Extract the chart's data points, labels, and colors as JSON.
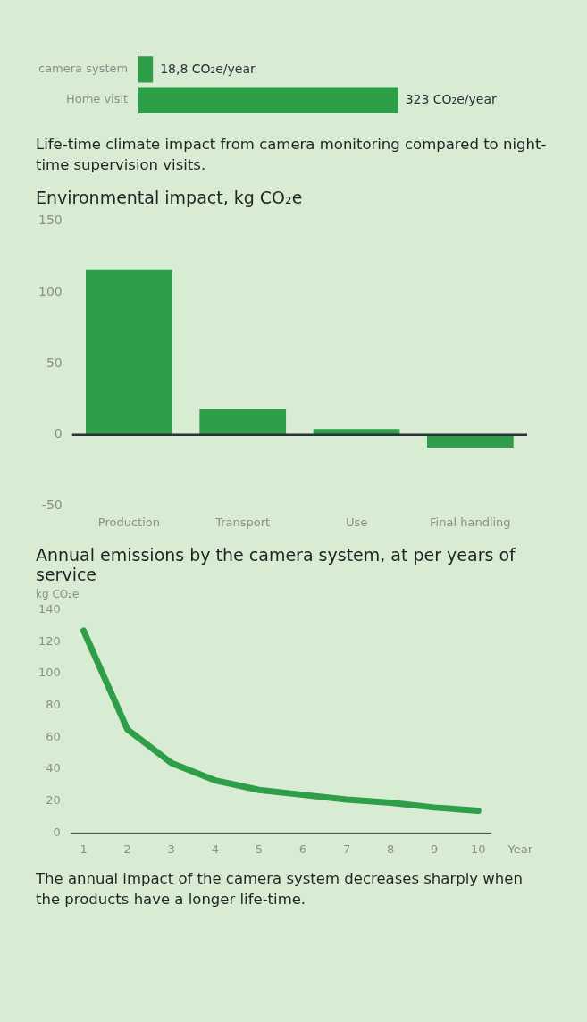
{
  "chart_data": [
    {
      "type": "bar",
      "orientation": "horizontal",
      "categories": [
        "camera system",
        "Home visit"
      ],
      "values": [
        18.8,
        323
      ],
      "color": "#2e9e48",
      "value_labels": [
        "18,8 CO₂e/year",
        "323 CO₂e/year"
      ],
      "annotations": [
        "Life-time climate impact from camera monitoring compared to night-time supervision visits."
      ]
    },
    {
      "type": "bar",
      "title": "Environmental impact, kg CO₂e",
      "categories": [
        "Production",
        "Transport",
        "Use",
        "Final handling"
      ],
      "values": [
        116,
        18,
        4,
        -9
      ],
      "color": "#2e9e48",
      "ylim": [
        -50,
        150
      ],
      "yticks": [
        -50,
        0,
        50,
        100,
        150
      ],
      "ref_lines": [
        {
          "axis": "y",
          "value": 0,
          "color": "#2b2f3a"
        }
      ]
    },
    {
      "type": "line",
      "title": "Annual emissions by the camera system, at per years of service",
      "ylabel": "kg CO₂e",
      "xlabel": "Year",
      "x": [
        1,
        2,
        3,
        4,
        5,
        6,
        7,
        8,
        9,
        10
      ],
      "values": [
        127,
        65,
        44,
        33,
        27,
        24,
        21,
        19,
        16,
        14
      ],
      "color": "#2e9e48",
      "marker": "none",
      "xlim": [
        0.7,
        10.3
      ],
      "xticks": [
        1,
        2,
        3,
        4,
        5,
        6,
        7,
        8,
        9,
        10
      ],
      "ylim": [
        0,
        140
      ],
      "yticks": [
        0,
        20,
        40,
        60,
        80,
        100,
        120,
        140
      ],
      "annotations": [
        "The annual impact of the camera system decreases sharply when the products have a longer life-time."
      ]
    }
  ]
}
